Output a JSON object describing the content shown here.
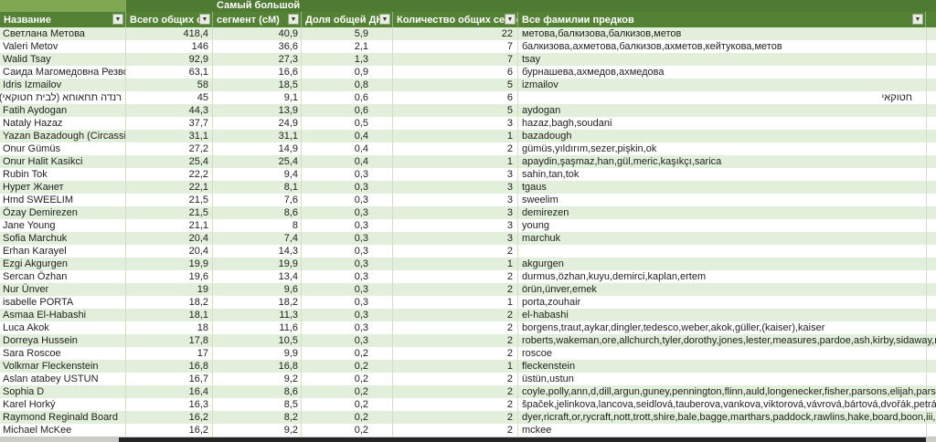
{
  "table": {
    "merged_header_line1": "Самый большой",
    "columns": [
      "Название",
      "Всего общих сМ",
      "сегмент (сМ)",
      "Доля общей ДНК",
      "Количество общих сегментов",
      "Все фамилии предков"
    ],
    "rows": [
      [
        "Светлана Метова",
        "418,4",
        "40,9",
        "5,9",
        "22",
        "метова,балкизова,балкизов,метов"
      ],
      [
        "Valeri Metov",
        "146",
        "36,6",
        "2,1",
        "7",
        "балкизова,ахметова,балкизов,ахметов,кейтукова,метов"
      ],
      [
        "Walid Tsay",
        "92,9",
        "27,3",
        "1,3",
        "7",
        "tsay"
      ],
      [
        "Саида Магомедовна Резвой",
        "63,1",
        "16,6",
        "0,9",
        "6",
        "бурнашева,ахмедов,ахмедова"
      ],
      [
        "Idris Izmailov",
        "58",
        "18,5",
        "0,8",
        "5",
        "izmailov"
      ],
      [
        "רנדה תחאוחא (לבית חטוקאי)",
        "45",
        "9,1",
        "0,6",
        "6",
        "חטוקאי"
      ],
      [
        "Fatih Aydogan",
        "44,3",
        "13,9",
        "0,6",
        "5",
        "aydogan"
      ],
      [
        "Nataly Hazaz",
        "37,7",
        "24,9",
        "0,5",
        "3",
        "hazaz,bagh,soudani"
      ],
      [
        "Yazan Bazadough (Circassian)",
        "31,1",
        "31,1",
        "0,4",
        "1",
        "bazadough"
      ],
      [
        "Onur Gümüs",
        "27,2",
        "14,9",
        "0,4",
        "2",
        "gümüs,yıldırım,sezer,pişkin,ok"
      ],
      [
        "Onur Halit Kasikci",
        "25,4",
        "25,4",
        "0,4",
        "1",
        "apaydin,şaşmaz,han,gül,meric,kaşıkçı,sarica"
      ],
      [
        "Rubin Tok",
        "22,2",
        "9,4",
        "0,3",
        "3",
        "sahin,tan,tok"
      ],
      [
        "Нурет Жанет",
        "22,1",
        "8,1",
        "0,3",
        "3",
        "tgaus"
      ],
      [
        "Hmd SWEELIM",
        "21,5",
        "7,6",
        "0,3",
        "3",
        "sweelim"
      ],
      [
        "Özay Demirezen",
        "21,5",
        "8,6",
        "0,3",
        "3",
        "demirezen"
      ],
      [
        "Jane Young",
        "21,1",
        "8",
        "0,3",
        "3",
        "young"
      ],
      [
        "Sofia Marchuk",
        "20,4",
        "7,4",
        "0,3",
        "3",
        "marchuk"
      ],
      [
        "Erhan Karayel",
        "20,4",
        "14,3",
        "0,3",
        "2",
        ""
      ],
      [
        "Ezgi Akgurgen",
        "19,9",
        "19,9",
        "0,3",
        "1",
        "akgurgen"
      ],
      [
        "Sercan Özhan",
        "19,6",
        "13,4",
        "0,3",
        "2",
        "durmus,özhan,kuyu,demirci,kaplan,ertem"
      ],
      [
        "Nur Ünver",
        "19",
        "9,6",
        "0,3",
        "2",
        "örün,ünver,emek"
      ],
      [
        "isabelle PORTA",
        "18,2",
        "18,2",
        "0,3",
        "1",
        "porta,zouhair"
      ],
      [
        "Asmaa El-Habashi",
        "18,1",
        "11,3",
        "0,3",
        "2",
        "el-habashi"
      ],
      [
        "Luca Akok",
        "18",
        "11,6",
        "0,3",
        "2",
        "borgens,traut,aykar,dingler,tedesco,weber,akok,güller,(kaiser),kaiser"
      ],
      [
        "Dorreya Hussein",
        "17,8",
        "10,5",
        "0,3",
        "2",
        "roberts,wakeman,ore,allchurch,tyler,dorothy,jones,lester,measures,pardoe,ash,kirby,sidaway,martha,"
      ],
      [
        "Sara Roscoe",
        "17",
        "9,9",
        "0,2",
        "2",
        "roscoe"
      ],
      [
        "Volkmar Fleckenstein",
        "16,8",
        "16,8",
        "0,2",
        "1",
        "fleckenstein"
      ],
      [
        "Aslan atabey USTUN",
        "16,7",
        "9,2",
        "0,2",
        "2",
        "üstün,ustun"
      ],
      [
        "Sophia D",
        "16,4",
        "8,6",
        "0,2",
        "2",
        "coyle,polly,ann,d,dill,argun,guney,pennington,flinn,auld,longenecker,fisher,parsons,elijah,parson,çorlu,"
      ],
      [
        "Karel Horký",
        "16,3",
        "8,5",
        "0,2",
        "2",
        "špaček,jelinkova,lancova,seidlová,tauberova,vankova,viktorová,vávrová,bártová,dvořák,petráž,vávra,"
      ],
      [
        "Raymond Reginald Board",
        "16,2",
        "8,2",
        "0,2",
        "2",
        "dyer,ricraft,or,rycraft,nott,trott,shire,bale,bagge,marthars,paddock,rawlins,hake,board,boon,iii,of,lapf"
      ],
      [
        "Michael McKee",
        "16,2",
        "9,2",
        "0,2",
        "2",
        "mckee"
      ]
    ],
    "filter_arrow_glyph": "▼"
  },
  "colors": {
    "header_green": "#548235",
    "strip_dark_green": "#4E7A31",
    "strip_light_green": "#7EA952",
    "band_green": "#E2EFDA",
    "row_white": "#FFFFFF",
    "grid_line": "#D3DFC5",
    "text": "#1F1F1F",
    "bottom_bar_dark": "#242424",
    "bottom_bar_grey": "#C9CDC5"
  }
}
